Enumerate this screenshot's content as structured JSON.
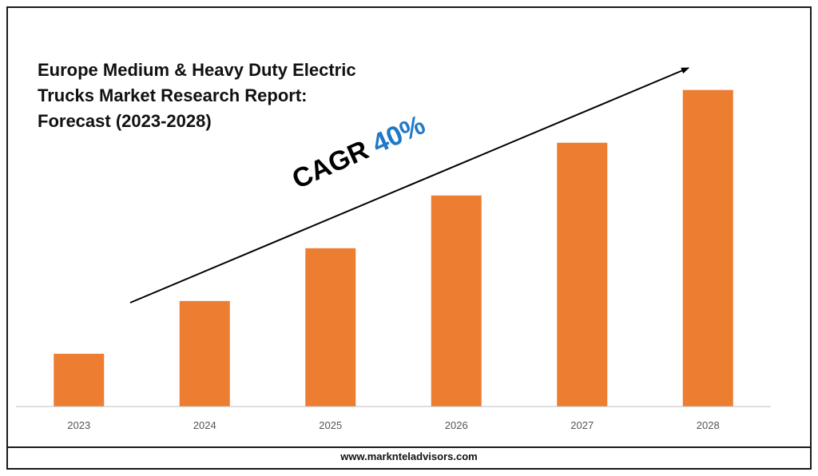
{
  "colors": {
    "bar": "#ED7D31",
    "axis": "#BFBFBF",
    "trend_arrow": "#000000",
    "cagr_value": "#1F78C8"
  },
  "annotation": {
    "label": "CAGR",
    "value": "40%"
  },
  "footer": {
    "website": "www.marknteladvisors.com"
  },
  "chart_data": {
    "type": "bar",
    "title": "Europe Medium & Heavy Duty Electric\nTrucks Market Research Report:\nForecast (2023-2028)",
    "categories": [
      "2023",
      "2024",
      "2025",
      "2026",
      "2027",
      "2028"
    ],
    "values": [
      17,
      34,
      51,
      68,
      85,
      102
    ],
    "xlabel": "",
    "ylabel": "",
    "ylim": [
      0,
      105
    ],
    "grid": false,
    "legend": "none",
    "y_tick_labels_shown": false
  }
}
